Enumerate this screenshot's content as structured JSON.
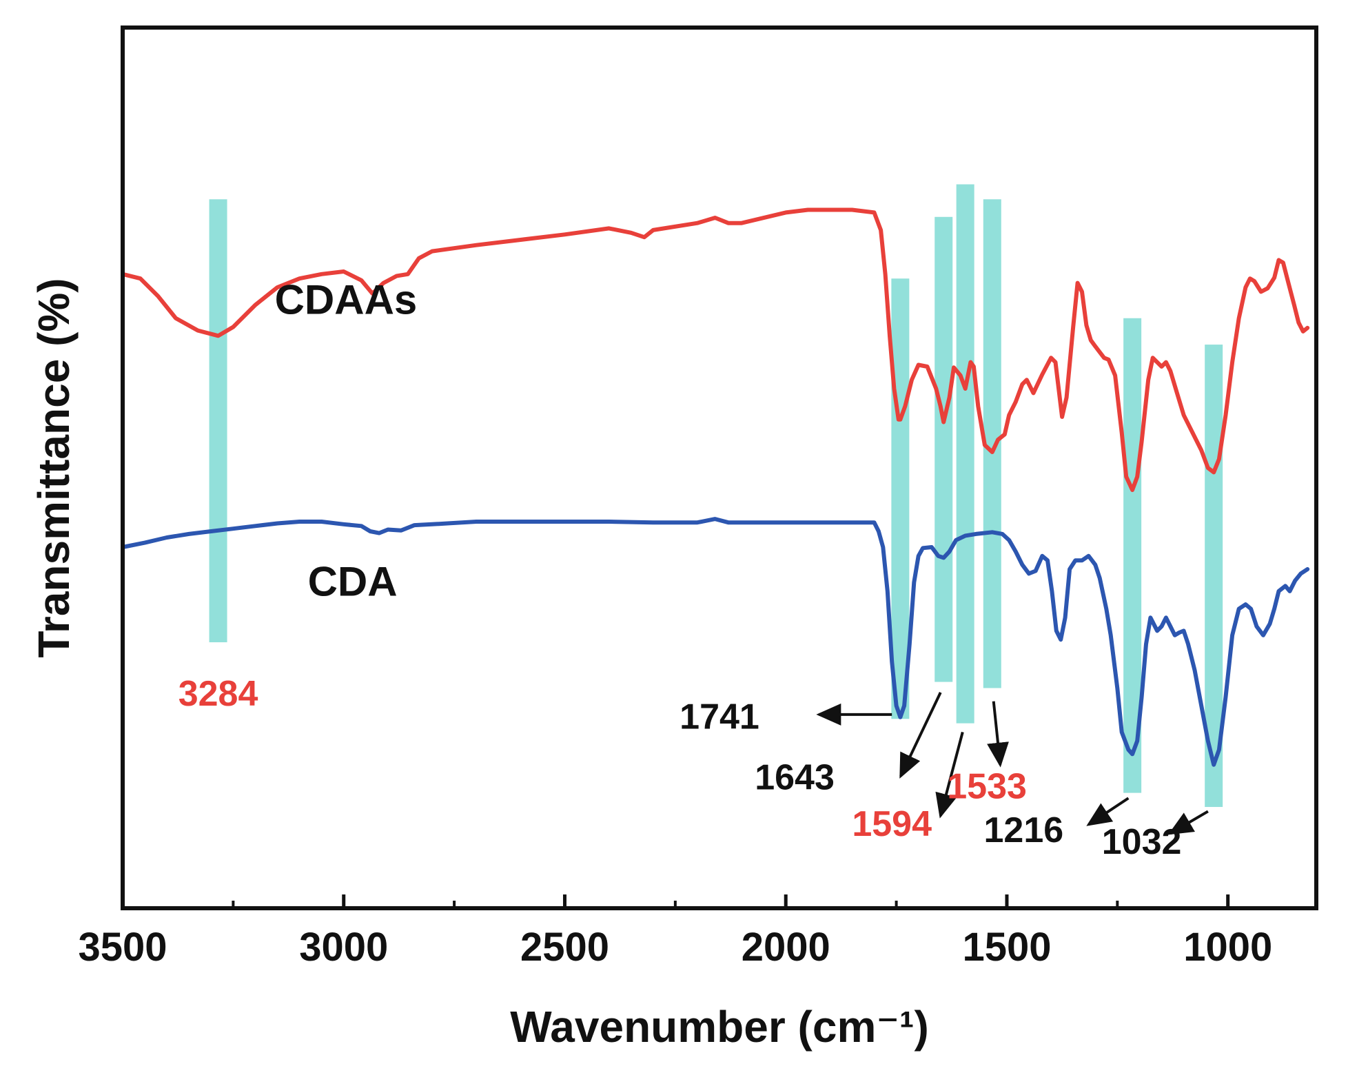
{
  "chart_data": {
    "type": "line",
    "title": "",
    "xlabel": "Wavenumber (cm⁻¹)",
    "ylabel": "Transmittance (%)",
    "xlim": [
      3500,
      800
    ],
    "x_reversed": true,
    "x_ticks": [
      3500,
      3000,
      2500,
      2000,
      1500,
      1000
    ],
    "x_tick_labels": [
      "3500",
      "3000",
      "2500",
      "2000",
      "1500",
      "1000"
    ],
    "y_ticks_shown": false,
    "ylim": [
      0,
      100
    ],
    "grid": false,
    "legend": "none",
    "series": [
      {
        "name": "CDAAs",
        "color": "#e8403a",
        "points": [
          [
            3500,
            72
          ],
          [
            3460,
            71.5
          ],
          [
            3420,
            69.5
          ],
          [
            3380,
            67
          ],
          [
            3330,
            65.6
          ],
          [
            3284,
            65
          ],
          [
            3250,
            66
          ],
          [
            3200,
            68.5
          ],
          [
            3150,
            70.5
          ],
          [
            3100,
            71.5
          ],
          [
            3050,
            72
          ],
          [
            3000,
            72.3
          ],
          [
            2960,
            71.3
          ],
          [
            2935,
            69.8
          ],
          [
            2910,
            71
          ],
          [
            2880,
            71.8
          ],
          [
            2855,
            72
          ],
          [
            2830,
            73.8
          ],
          [
            2800,
            74.6
          ],
          [
            2700,
            75.3
          ],
          [
            2600,
            75.9
          ],
          [
            2500,
            76.5
          ],
          [
            2400,
            77.2
          ],
          [
            2350,
            76.7
          ],
          [
            2320,
            76.2
          ],
          [
            2300,
            77
          ],
          [
            2200,
            77.8
          ],
          [
            2160,
            78.4
          ],
          [
            2130,
            77.8
          ],
          [
            2100,
            77.8
          ],
          [
            2000,
            79
          ],
          [
            1950,
            79.3
          ],
          [
            1900,
            79.3
          ],
          [
            1850,
            79.3
          ],
          [
            1800,
            79
          ],
          [
            1785,
            77
          ],
          [
            1775,
            72
          ],
          [
            1765,
            65
          ],
          [
            1755,
            59
          ],
          [
            1745,
            55.5
          ],
          [
            1741,
            55.5
          ],
          [
            1730,
            57
          ],
          [
            1715,
            60
          ],
          [
            1700,
            61.7
          ],
          [
            1680,
            61.5
          ],
          [
            1660,
            59
          ],
          [
            1650,
            57
          ],
          [
            1643,
            55.2
          ],
          [
            1630,
            58
          ],
          [
            1620,
            61.4
          ],
          [
            1605,
            60.5
          ],
          [
            1594,
            59
          ],
          [
            1582,
            62
          ],
          [
            1575,
            61.5
          ],
          [
            1565,
            57
          ],
          [
            1550,
            52.6
          ],
          [
            1533,
            51.8
          ],
          [
            1520,
            53.2
          ],
          [
            1505,
            53.8
          ],
          [
            1495,
            56
          ],
          [
            1480,
            57.5
          ],
          [
            1465,
            59.5
          ],
          [
            1455,
            60
          ],
          [
            1440,
            58.5
          ],
          [
            1420,
            60.6
          ],
          [
            1400,
            62.5
          ],
          [
            1390,
            62
          ],
          [
            1375,
            55.8
          ],
          [
            1365,
            58
          ],
          [
            1350,
            66
          ],
          [
            1340,
            71
          ],
          [
            1330,
            70
          ],
          [
            1320,
            66.2
          ],
          [
            1310,
            64.5
          ],
          [
            1300,
            63.8
          ],
          [
            1280,
            62.5
          ],
          [
            1270,
            62.3
          ],
          [
            1255,
            60.5
          ],
          [
            1240,
            54
          ],
          [
            1230,
            49
          ],
          [
            1216,
            47.5
          ],
          [
            1205,
            49
          ],
          [
            1195,
            53
          ],
          [
            1180,
            60
          ],
          [
            1170,
            62.5
          ],
          [
            1160,
            62
          ],
          [
            1150,
            61.5
          ],
          [
            1140,
            62
          ],
          [
            1130,
            61
          ],
          [
            1115,
            58.5
          ],
          [
            1100,
            56
          ],
          [
            1080,
            54
          ],
          [
            1060,
            52
          ],
          [
            1045,
            50
          ],
          [
            1032,
            49.5
          ],
          [
            1020,
            51
          ],
          [
            1005,
            56
          ],
          [
            990,
            62
          ],
          [
            975,
            67
          ],
          [
            960,
            70.5
          ],
          [
            950,
            71.5
          ],
          [
            940,
            71.2
          ],
          [
            925,
            70
          ],
          [
            910,
            70.4
          ],
          [
            895,
            71.6
          ],
          [
            885,
            73.6
          ],
          [
            875,
            73.3
          ],
          [
            862,
            70.8
          ],
          [
            850,
            68.5
          ],
          [
            840,
            66.5
          ],
          [
            830,
            65.5
          ],
          [
            820,
            65.9
          ]
        ]
      },
      {
        "name": "CDA",
        "color": "#2c56b0",
        "points": [
          [
            3500,
            41
          ],
          [
            3450,
            41.5
          ],
          [
            3400,
            42.1
          ],
          [
            3350,
            42.5
          ],
          [
            3300,
            42.8
          ],
          [
            3250,
            43.1
          ],
          [
            3200,
            43.4
          ],
          [
            3150,
            43.7
          ],
          [
            3100,
            43.9
          ],
          [
            3050,
            43.9
          ],
          [
            3000,
            43.6
          ],
          [
            2960,
            43.4
          ],
          [
            2940,
            42.8
          ],
          [
            2920,
            42.6
          ],
          [
            2900,
            43
          ],
          [
            2870,
            42.9
          ],
          [
            2840,
            43.5
          ],
          [
            2800,
            43.6
          ],
          [
            2700,
            43.9
          ],
          [
            2600,
            43.9
          ],
          [
            2500,
            43.9
          ],
          [
            2400,
            43.9
          ],
          [
            2300,
            43.8
          ],
          [
            2200,
            43.8
          ],
          [
            2160,
            44.2
          ],
          [
            2130,
            43.8
          ],
          [
            2100,
            43.8
          ],
          [
            2000,
            43.8
          ],
          [
            1950,
            43.8
          ],
          [
            1900,
            43.8
          ],
          [
            1850,
            43.8
          ],
          [
            1800,
            43.8
          ],
          [
            1790,
            42.8
          ],
          [
            1780,
            41
          ],
          [
            1770,
            36
          ],
          [
            1760,
            28
          ],
          [
            1750,
            23
          ],
          [
            1741,
            21.7
          ],
          [
            1732,
            23
          ],
          [
            1720,
            30
          ],
          [
            1710,
            37
          ],
          [
            1700,
            40
          ],
          [
            1690,
            40.9
          ],
          [
            1670,
            41
          ],
          [
            1655,
            40
          ],
          [
            1643,
            39.8
          ],
          [
            1630,
            40.5
          ],
          [
            1615,
            41.8
          ],
          [
            1594,
            42.3
          ],
          [
            1570,
            42.5
          ],
          [
            1533,
            42.7
          ],
          [
            1510,
            42.5
          ],
          [
            1495,
            41.8
          ],
          [
            1480,
            40.5
          ],
          [
            1465,
            39
          ],
          [
            1450,
            38
          ],
          [
            1435,
            38.3
          ],
          [
            1420,
            40
          ],
          [
            1408,
            39.5
          ],
          [
            1398,
            36
          ],
          [
            1388,
            31.5
          ],
          [
            1378,
            30.5
          ],
          [
            1368,
            33
          ],
          [
            1358,
            38.5
          ],
          [
            1345,
            39.5
          ],
          [
            1330,
            39.5
          ],
          [
            1315,
            40
          ],
          [
            1300,
            39
          ],
          [
            1290,
            37.5
          ],
          [
            1275,
            34
          ],
          [
            1265,
            31
          ],
          [
            1250,
            25
          ],
          [
            1240,
            20
          ],
          [
            1225,
            18
          ],
          [
            1216,
            17.5
          ],
          [
            1205,
            19
          ],
          [
            1195,
            24
          ],
          [
            1185,
            30
          ],
          [
            1175,
            33
          ],
          [
            1160,
            31.5
          ],
          [
            1150,
            32
          ],
          [
            1140,
            33
          ],
          [
            1130,
            32
          ],
          [
            1120,
            31
          ],
          [
            1110,
            31.3
          ],
          [
            1100,
            31.5
          ],
          [
            1090,
            30
          ],
          [
            1075,
            27
          ],
          [
            1060,
            23
          ],
          [
            1045,
            19
          ],
          [
            1032,
            16.3
          ],
          [
            1020,
            18
          ],
          [
            1005,
            24
          ],
          [
            990,
            31
          ],
          [
            975,
            34
          ],
          [
            960,
            34.5
          ],
          [
            948,
            34
          ],
          [
            935,
            32
          ],
          [
            920,
            31
          ],
          [
            905,
            32.3
          ],
          [
            895,
            34
          ],
          [
            885,
            36
          ],
          [
            870,
            36.6
          ],
          [
            860,
            36
          ],
          [
            848,
            37.2
          ],
          [
            835,
            38
          ],
          [
            820,
            38.5
          ]
        ]
      }
    ],
    "band_color": "#6dd5ce",
    "bands": [
      {
        "x": 3284,
        "y_top": 80.5,
        "y_bottom": 30.2
      },
      {
        "x": 1741,
        "y_top": 71.5,
        "y_bottom": 21.5
      },
      {
        "x": 1643,
        "y_top": 78.5,
        "y_bottom": 25.7
      },
      {
        "x": 1594,
        "y_top": 82.2,
        "y_bottom": 21
      },
      {
        "x": 1533,
        "y_top": 80.5,
        "y_bottom": 25
      },
      {
        "x": 1216,
        "y_top": 67,
        "y_bottom": 13.1
      },
      {
        "x": 1032,
        "y_top": 64,
        "y_bottom": 11.5
      }
    ],
    "annotations": [
      {
        "text": "3284",
        "color": "#e8403a",
        "x": 3284,
        "y": 23
      },
      {
        "text": "1741",
        "color": "#111111",
        "x": 2150,
        "y": 20.4
      },
      {
        "text": "1643",
        "color": "#111111",
        "x": 1980,
        "y": 13.5
      },
      {
        "text": "1594",
        "color": "#e8403a",
        "x": 1760,
        "y": 8.2
      },
      {
        "text": "1533",
        "color": "#e8403a",
        "x": 1545,
        "y": 12.5
      },
      {
        "text": "1216",
        "color": "#111111",
        "x": 1462,
        "y": 7.5
      },
      {
        "text": "1032",
        "color": "#111111",
        "x": 1195,
        "y": 6.2
      }
    ],
    "arrows": [
      {
        "from": [
          1760,
          22
        ],
        "to": [
          1925,
          22
        ]
      },
      {
        "from": [
          1650,
          24.5
        ],
        "to": [
          1740,
          15
        ]
      },
      {
        "from": [
          1600,
          20
        ],
        "to": [
          1650,
          10.5
        ]
      },
      {
        "from": [
          1530,
          23.5
        ],
        "to": [
          1515,
          16.3
        ]
      },
      {
        "from": [
          1225,
          12.5
        ],
        "to": [
          1315,
          9.5
        ]
      },
      {
        "from": [
          1045,
          11
        ],
        "to": [
          1130,
          8.5
        ]
      }
    ],
    "series_labels": [
      {
        "text": "CDAAs",
        "x": 2995,
        "y": 67.5
      },
      {
        "text": "CDA",
        "x": 2980,
        "y": 35.5
      }
    ]
  }
}
